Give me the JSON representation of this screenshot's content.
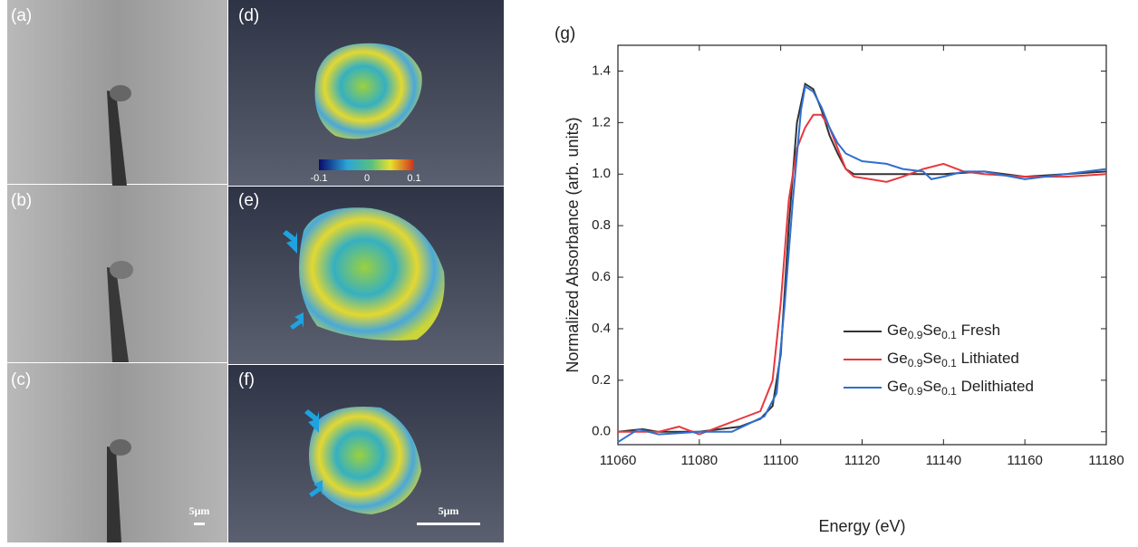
{
  "panels": {
    "labels": [
      "(a)",
      "(b)",
      "(c)",
      "(d)",
      "(e)",
      "(f)"
    ],
    "scale_bar_left": "5μm",
    "scale_bar_right": "5μm",
    "colorbar_ticks": [
      "-0.1",
      "0",
      "0.1"
    ]
  },
  "chart_data": {
    "type": "line",
    "title": "(g)",
    "x_label": "Energy (eV)",
    "y_label": "Normalized Absorbance (arb. units)",
    "xlim": [
      11060,
      11180
    ],
    "xticks": [
      11060,
      11080,
      11100,
      11120,
      11140,
      11160,
      11180
    ],
    "ylim": [
      -0.05,
      1.5
    ],
    "yticks": [
      {
        "value": 0,
        "label": "0.0"
      },
      0.2,
      0.4,
      0.6,
      0.8,
      {
        "value": 1,
        "label": "1.0"
      },
      1.2,
      1.4
    ],
    "legend": "lower right",
    "series": [
      {
        "name": "Ge0.9Se0.1 Fresh",
        "color": "#333333",
        "x": [
          11060,
          11066,
          11070,
          11076,
          11080,
          11085,
          11090,
          11095,
          11098,
          11100,
          11102,
          11104,
          11106,
          11108,
          11110,
          11112,
          11114,
          11116,
          11118,
          11120,
          11130,
          11140,
          11150,
          11160,
          11170,
          11180
        ],
        "values": [
          0,
          0.01,
          0,
          0,
          0,
          0.01,
          0.02,
          0.05,
          0.1,
          0.3,
          0.8,
          1.2,
          1.35,
          1.33,
          1.25,
          1.15,
          1.08,
          1.02,
          1.0,
          1.0,
          1.0,
          1.0,
          1.01,
          0.99,
          1.0,
          1.01
        ]
      },
      {
        "name": "Ge0.9Se0.1 Lithiated",
        "color": "#e8383d",
        "x": [
          11060,
          11070,
          11075,
          11080,
          11085,
          11090,
          11095,
          11098,
          11100,
          11102,
          11104,
          11106,
          11108,
          11110,
          11112,
          11114,
          11116,
          11118,
          11122,
          11126,
          11130,
          11135,
          11140,
          11145,
          11150,
          11160,
          11170,
          11180
        ],
        "values": [
          0,
          0,
          0.02,
          -0.01,
          0.02,
          0.05,
          0.08,
          0.2,
          0.5,
          0.9,
          1.1,
          1.18,
          1.23,
          1.23,
          1.18,
          1.1,
          1.02,
          0.99,
          0.98,
          0.97,
          0.99,
          1.02,
          1.04,
          1.01,
          1.0,
          0.99,
          0.99,
          1.0
        ]
      },
      {
        "name": "Ge0.9Se0.1 Delithiated",
        "color": "#2e6fd0",
        "x": [
          11060,
          11065,
          11070,
          11080,
          11088,
          11092,
          11096,
          11099,
          11101,
          11103,
          11105,
          11106,
          11108,
          11110,
          11112,
          11114,
          11116,
          11120,
          11126,
          11130,
          11135,
          11137,
          11140,
          11145,
          11150,
          11160,
          11170,
          11180
        ],
        "values": [
          -0.04,
          0.01,
          -0.01,
          0,
          0,
          0.03,
          0.06,
          0.15,
          0.5,
          0.9,
          1.25,
          1.34,
          1.32,
          1.26,
          1.18,
          1.12,
          1.08,
          1.05,
          1.04,
          1.02,
          1.01,
          0.98,
          0.99,
          1.01,
          1.01,
          0.98,
          1.0,
          1.02
        ]
      }
    ]
  }
}
